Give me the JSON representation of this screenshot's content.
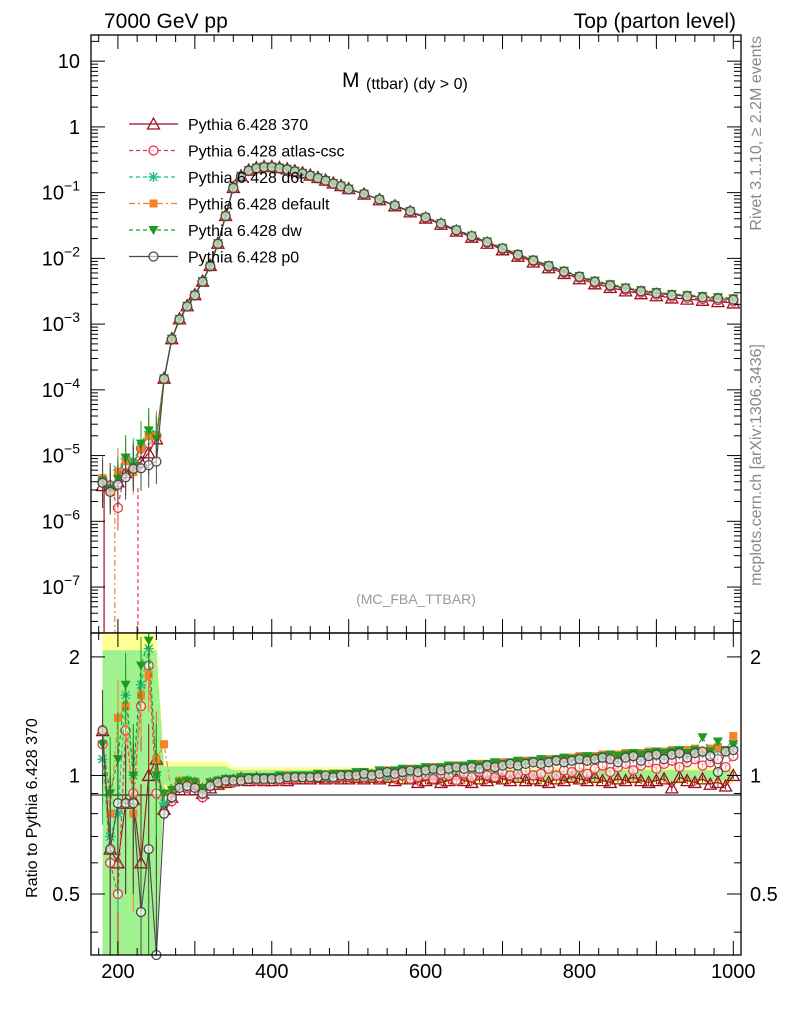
{
  "header": {
    "left": "7000 GeV pp",
    "right": "Top (parton level)"
  },
  "side_text": {
    "rivet": "Rivet 3.1.10, ≥ 2.2M events",
    "mcplots": "mcplots.cern.ch [arXiv:1306.3436]"
  },
  "chart_data": [
    {
      "type": "line",
      "title": "M (ttbar) (dy > 0)",
      "title_main": "M",
      "title_sub": "(ttbar) (dy > 0)",
      "watermark": "(MC_FBA_TTBAR)",
      "xlim": [
        165,
        1010
      ],
      "ylim": [
        2e-08,
        25
      ],
      "log_y": true,
      "legend_position": "top-left",
      "y_tick_labels": [
        {
          "value": 1e-07,
          "mant": "10",
          "exp": "−7"
        },
        {
          "value": 1e-06,
          "mant": "10",
          "exp": "−6"
        },
        {
          "value": 1e-05,
          "mant": "10",
          "exp": "−5"
        },
        {
          "value": 0.0001,
          "mant": "10",
          "exp": "−4"
        },
        {
          "value": 0.001,
          "mant": "10",
          "exp": "−3"
        },
        {
          "value": 0.01,
          "mant": "10",
          "exp": "−2"
        },
        {
          "value": 0.1,
          "mant": "10",
          "exp": "−1"
        },
        {
          "value": 1,
          "mant": "1",
          "exp": ""
        },
        {
          "value": 10,
          "mant": "10",
          "exp": ""
        }
      ],
      "reference": {
        "name": "Pythia 6.428 370",
        "x": [
          180,
          190,
          200,
          210,
          220,
          230,
          240,
          250,
          260,
          270,
          280,
          290,
          300,
          310,
          320,
          330,
          340,
          350,
          360,
          370,
          380,
          390,
          400,
          410,
          420,
          430,
          440,
          450,
          460,
          470,
          480,
          490,
          500,
          520,
          540,
          560,
          580,
          600,
          620,
          640,
          660,
          680,
          700,
          720,
          740,
          760,
          780,
          800,
          820,
          840,
          860,
          880,
          900,
          920,
          940,
          960,
          980,
          1000
        ],
        "values": [
          3.5e-06,
          3.5e-06,
          4e-06,
          5.5e-06,
          7e-06,
          8e-06,
          1.1e-05,
          1.8e-05,
          0.00015,
          0.0006,
          0.0012,
          0.0019,
          0.0028,
          0.0045,
          0.0078,
          0.017,
          0.045,
          0.12,
          0.18,
          0.22,
          0.24,
          0.25,
          0.25,
          0.24,
          0.23,
          0.215,
          0.2,
          0.185,
          0.17,
          0.155,
          0.14,
          0.128,
          0.115,
          0.095,
          0.078,
          0.063,
          0.051,
          0.041,
          0.033,
          0.026,
          0.021,
          0.017,
          0.0135,
          0.0108,
          0.0088,
          0.0072,
          0.0059,
          0.0049,
          0.0041,
          0.0036,
          0.0032,
          0.0029,
          0.0027,
          0.0025,
          0.0024,
          0.0023,
          0.0022,
          0.0021
        ]
      },
      "series": [
        {
          "name": "Pythia 6.428 370",
          "color": "#9b0e1e",
          "dash": "",
          "marker": "triangle-open"
        },
        {
          "name": "Pythia 6.428 atlas-csc",
          "color": "#e8354c",
          "dash": "4,3",
          "marker": "circle-open"
        },
        {
          "name": "Pythia 6.428 d6t",
          "color": "#1bbf86",
          "dash": "4,3",
          "marker": "star"
        },
        {
          "name": "Pythia 6.428 default",
          "color": "#f5812a",
          "dash": "6,3,2,3",
          "marker": "square"
        },
        {
          "name": "Pythia 6.428 dw",
          "color": "#1f9c1f",
          "dash": "4,3",
          "marker": "triangle-down"
        },
        {
          "name": "Pythia 6.428 p0",
          "color": "#4a4a4a",
          "dash": "",
          "marker": "circle-open"
        }
      ]
    },
    {
      "type": "line",
      "ylabel": "Ratio to Pythia 6.428 370",
      "xlim": [
        165,
        1010
      ],
      "ylim": [
        0.35,
        2.3
      ],
      "x_tick_labels": [
        "200",
        "400",
        "600",
        "800",
        "1000"
      ],
      "x_ticks": [
        200,
        400,
        600,
        800,
        1000
      ],
      "y_tick_labels": [
        "0.5",
        "1",
        "2"
      ],
      "y_ticks": [
        0.5,
        1,
        2
      ],
      "reference_line": 1,
      "x": [
        180,
        190,
        200,
        210,
        220,
        230,
        240,
        250,
        260,
        270,
        280,
        290,
        300,
        310,
        320,
        330,
        340,
        350,
        360,
        370,
        380,
        390,
        400,
        410,
        420,
        430,
        440,
        450,
        460,
        470,
        480,
        490,
        500,
        510,
        520,
        530,
        540,
        550,
        560,
        570,
        580,
        590,
        600,
        610,
        620,
        630,
        640,
        650,
        660,
        670,
        680,
        690,
        700,
        710,
        720,
        730,
        740,
        750,
        760,
        770,
        780,
        790,
        800,
        810,
        820,
        830,
        840,
        850,
        860,
        870,
        880,
        890,
        900,
        910,
        920,
        930,
        940,
        950,
        960,
        970,
        980,
        990,
        1000
      ],
      "ratios": [
        [
          1.3,
          0.65,
          0.6,
          0.85,
          0.87,
          0.6,
          1.0,
          1.1,
          0.82,
          0.88,
          0.92,
          0.95,
          0.92,
          0.9,
          0.93,
          0.95,
          0.96,
          0.97,
          0.98,
          0.97,
          0.98,
          0.97,
          0.97,
          0.98,
          0.97,
          0.98,
          0.98,
          0.98,
          0.99,
          0.98,
          0.99,
          0.98,
          0.98,
          0.99,
          0.98,
          0.99,
          0.98,
          0.99,
          0.97,
          0.98,
          0.98,
          0.96,
          0.97,
          0.98,
          0.96,
          0.97,
          0.98,
          0.97,
          0.96,
          0.98,
          0.97,
          0.99,
          0.98,
          0.97,
          0.99,
          0.97,
          0.98,
          0.97,
          0.96,
          0.98,
          0.97,
          0.99,
          0.98,
          0.97,
          0.99,
          0.97,
          0.96,
          0.98,
          0.97,
          0.99,
          0.97,
          0.96,
          0.97,
          0.98,
          0.93,
          0.99,
          0.97,
          0.96,
          0.98,
          0.95,
          0.96,
          0.94,
          1.0
        ],
        [
          1.2,
          0.6,
          0.5,
          1.3,
          0.9,
          1.5,
          1.9,
          0.9,
          0.8,
          0.86,
          0.95,
          0.93,
          0.96,
          0.88,
          0.94,
          0.96,
          0.97,
          0.96,
          0.97,
          0.98,
          0.97,
          0.97,
          0.98,
          0.97,
          0.98,
          0.98,
          0.99,
          0.98,
          0.99,
          0.99,
          0.98,
          0.99,
          0.99,
          1.0,
          0.99,
          1.0,
          0.99,
          1.0,
          0.99,
          1.0,
          0.98,
          0.99,
          1.0,
          0.98,
          1.01,
          1.0,
          0.97,
          1.01,
          0.99,
          1.02,
          1.0,
          0.99,
          1.02,
          1.0,
          1.01,
          1.03,
          1.0,
          1.01,
          1.04,
          1.0,
          1.03,
          1.02,
          1.05,
          1.01,
          1.04,
          1.06,
          1.02,
          1.05,
          1.07,
          1.03,
          1.06,
          1.08,
          1.04,
          1.07,
          1.09,
          1.05,
          1.08,
          1.1,
          1.06,
          1.08,
          1.1,
          1.05,
          1.12
        ],
        [
          1.1,
          0.7,
          0.8,
          1.6,
          1.0,
          1.7,
          2.1,
          1.0,
          0.85,
          0.9,
          0.95,
          0.96,
          0.95,
          0.91,
          0.95,
          0.96,
          0.97,
          0.97,
          0.98,
          0.98,
          0.98,
          0.98,
          0.98,
          0.99,
          0.99,
          0.99,
          0.99,
          0.99,
          1.0,
          0.99,
          1.0,
          1.0,
          1.0,
          1.01,
          1.0,
          1.01,
          1.01,
          1.0,
          1.02,
          1.01,
          1.02,
          1.03,
          1.02,
          1.03,
          1.04,
          1.03,
          1.04,
          1.05,
          1.04,
          1.05,
          1.06,
          1.05,
          1.06,
          1.07,
          1.06,
          1.07,
          1.08,
          1.07,
          1.08,
          1.09,
          1.08,
          1.09,
          1.1,
          1.09,
          1.1,
          1.11,
          1.1,
          1.11,
          1.12,
          1.11,
          1.12,
          1.13,
          1.12,
          1.13,
          1.14,
          1.13,
          1.14,
          1.15,
          1.14,
          1.15,
          1.16,
          1.15,
          1.18
        ],
        [
          1.3,
          0.8,
          1.4,
          1.5,
          0.8,
          1.6,
          1.8,
          1.1,
          1.2,
          0.9,
          0.97,
          0.97,
          0.95,
          0.92,
          0.96,
          0.97,
          0.98,
          0.98,
          0.98,
          0.99,
          0.98,
          0.99,
          0.99,
          0.99,
          1.0,
          0.99,
          1.0,
          1.0,
          1.0,
          1.0,
          1.01,
          1.0,
          1.01,
          1.01,
          1.02,
          1.01,
          1.02,
          1.03,
          1.02,
          1.03,
          1.04,
          1.03,
          1.04,
          1.05,
          1.04,
          1.05,
          1.06,
          1.05,
          1.06,
          1.07,
          1.06,
          1.07,
          1.08,
          1.07,
          1.08,
          1.09,
          1.08,
          1.09,
          1.1,
          1.09,
          1.1,
          1.11,
          1.12,
          1.1,
          1.12,
          1.13,
          1.11,
          1.13,
          1.14,
          1.12,
          1.14,
          1.15,
          1.13,
          1.15,
          1.16,
          1.14,
          1.16,
          1.17,
          1.15,
          1.17,
          1.18,
          1.16,
          1.26
        ],
        [
          1.2,
          0.9,
          1.1,
          1.7,
          1.0,
          1.9,
          2.2,
          1.0,
          0.9,
          0.92,
          0.96,
          0.97,
          0.96,
          0.93,
          0.96,
          0.97,
          0.98,
          0.98,
          0.99,
          0.99,
          0.99,
          0.99,
          0.99,
          1.0,
          0.99,
          1.0,
          1.0,
          1.0,
          1.01,
          1.0,
          1.01,
          1.01,
          1.01,
          1.02,
          1.02,
          1.01,
          1.03,
          1.02,
          1.03,
          1.04,
          1.03,
          1.04,
          1.05,
          1.04,
          1.05,
          1.06,
          1.05,
          1.06,
          1.07,
          1.06,
          1.07,
          1.08,
          1.07,
          1.08,
          1.09,
          1.08,
          1.09,
          1.1,
          1.09,
          1.1,
          1.11,
          1.1,
          1.11,
          1.12,
          1.11,
          1.12,
          1.13,
          1.12,
          1.13,
          1.14,
          1.13,
          1.14,
          1.15,
          1.14,
          1.15,
          1.16,
          1.14,
          1.16,
          1.25,
          1.15,
          1.22,
          1.16,
          1.2
        ],
        [
          1.3,
          0.65,
          0.85,
          0.85,
          0.85,
          0.45,
          0.65,
          0.35,
          0.8,
          0.88,
          0.93,
          0.94,
          0.93,
          0.9,
          0.94,
          0.96,
          0.97,
          0.97,
          0.97,
          0.98,
          0.98,
          0.98,
          0.98,
          0.98,
          0.99,
          0.99,
          0.99,
          0.99,
          0.99,
          1.0,
          0.99,
          1.0,
          1.0,
          1.0,
          1.01,
          1.0,
          1.01,
          1.02,
          1.01,
          1.02,
          1.03,
          1.02,
          1.03,
          1.04,
          1.03,
          1.04,
          1.05,
          1.04,
          1.05,
          1.04,
          1.06,
          1.05,
          1.06,
          1.07,
          1.06,
          1.07,
          1.08,
          1.07,
          1.08,
          1.09,
          1.08,
          1.09,
          1.1,
          1.09,
          1.1,
          1.11,
          1.1,
          1.08,
          1.11,
          1.12,
          1.09,
          1.12,
          1.13,
          1.1,
          1.13,
          1.14,
          1.11,
          1.14,
          1.15,
          1.12,
          1.02,
          1.15,
          1.16
        ]
      ]
    }
  ]
}
